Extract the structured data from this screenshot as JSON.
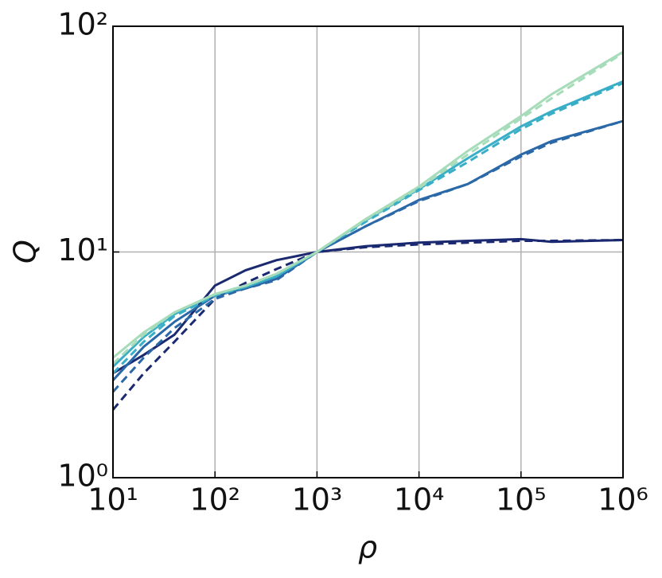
{
  "chart_data": {
    "type": "line",
    "xlabel": "ρ",
    "ylabel": "Q",
    "xscale": "log",
    "yscale": "log",
    "grid": true,
    "x": [
      10,
      20,
      40,
      100,
      200,
      400,
      1000,
      3000,
      10000,
      30000,
      100000,
      200000,
      1000000
    ],
    "series": [
      {
        "color": "#1b2a70",
        "linestyle": "solid",
        "values": [
          2.9,
          3.5,
          4.3,
          7.1,
          8.3,
          9.2,
          10,
          10.6,
          11,
          11.2,
          11.4,
          11.1,
          11.3
        ]
      },
      {
        "color": "#1b2a70",
        "linestyle": "dashed",
        "values": [
          2.0,
          2.9,
          4.0,
          6.2,
          7.3,
          8.4,
          10,
          10.5,
          10.8,
          11.0,
          11.2,
          11.2,
          11.3
        ]
      },
      {
        "color": "#2a68a8",
        "linestyle": "solid",
        "values": [
          2.7,
          3.8,
          4.9,
          6.4,
          6.9,
          7.6,
          10,
          13,
          17,
          20,
          27,
          31,
          38
        ]
      },
      {
        "color": "#2a68a8",
        "linestyle": "dashed",
        "values": [
          2.4,
          3.4,
          4.6,
          6.2,
          6.9,
          7.5,
          10,
          13,
          16.8,
          20,
          26.5,
          30.5,
          38
        ]
      },
      {
        "color": "#39aec6",
        "linestyle": "solid",
        "values": [
          3.1,
          4.2,
          5.3,
          6.5,
          7.0,
          7.8,
          10,
          13.8,
          19,
          26,
          36,
          42,
          57
        ]
      },
      {
        "color": "#39aec6",
        "linestyle": "dashed",
        "values": [
          2.9,
          4.0,
          5.2,
          6.4,
          7.0,
          7.8,
          10,
          13.6,
          18.8,
          25,
          35,
          41,
          56
        ]
      },
      {
        "color": "#a6dcb9",
        "linestyle": "solid",
        "values": [
          3.4,
          4.4,
          5.4,
          6.5,
          7.1,
          8.0,
          10,
          14,
          19.5,
          28,
          40,
          50,
          77
        ]
      },
      {
        "color": "#a6dcb9",
        "linestyle": "dashed",
        "values": [
          3.2,
          4.3,
          5.4,
          6.5,
          7.1,
          8.0,
          10,
          13.9,
          19.2,
          27,
          39,
          48,
          76
        ]
      }
    ],
    "xlim": [
      10,
      1000000
    ],
    "xticks": [
      {
        "value": 10,
        "label": "10¹"
      },
      {
        "value": 100,
        "label": "10²"
      },
      {
        "value": 1000,
        "label": "10³"
      },
      {
        "value": 10000,
        "label": "10⁴"
      },
      {
        "value": 100000,
        "label": "10⁵"
      },
      {
        "value": 1000000,
        "label": "10⁶"
      }
    ],
    "ylim": [
      1,
      100
    ],
    "yticks": [
      {
        "value": 1,
        "label": "10⁰"
      },
      {
        "value": 10,
        "label": "10¹"
      },
      {
        "value": 100,
        "label": "10²"
      }
    ]
  }
}
